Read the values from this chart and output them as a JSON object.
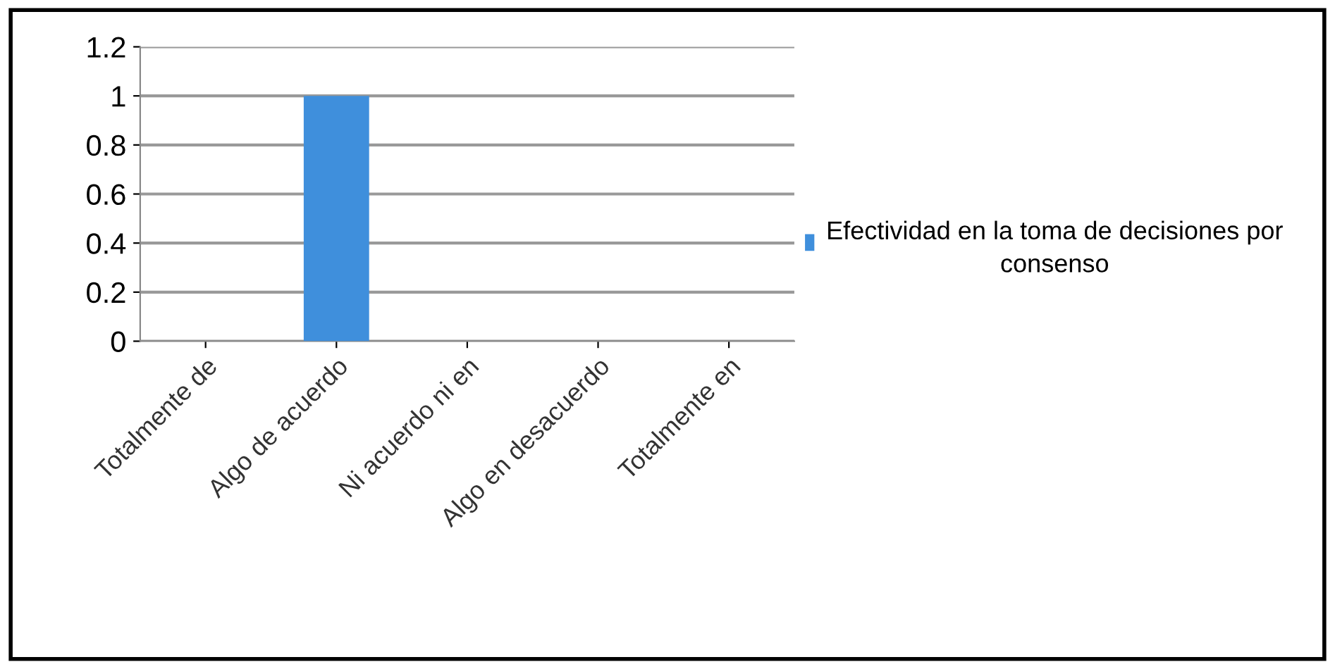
{
  "chart_data": {
    "type": "bar",
    "categories": [
      "Totalmente de",
      "Algo de acuerdo",
      "Ni acuerdo ni en",
      "Algo en desacuerdo",
      "Totalmente en"
    ],
    "series": [
      {
        "name": "Efectividad en la toma de decisiones por consenso",
        "color": "#3f8fdc",
        "values": [
          0,
          1,
          0,
          0,
          0
        ]
      }
    ],
    "ylim": [
      0,
      1.2
    ],
    "yticks": [
      0,
      0.2,
      0.4,
      0.6,
      0.8,
      1,
      1.2
    ],
    "grid": "y",
    "legend": "right"
  }
}
